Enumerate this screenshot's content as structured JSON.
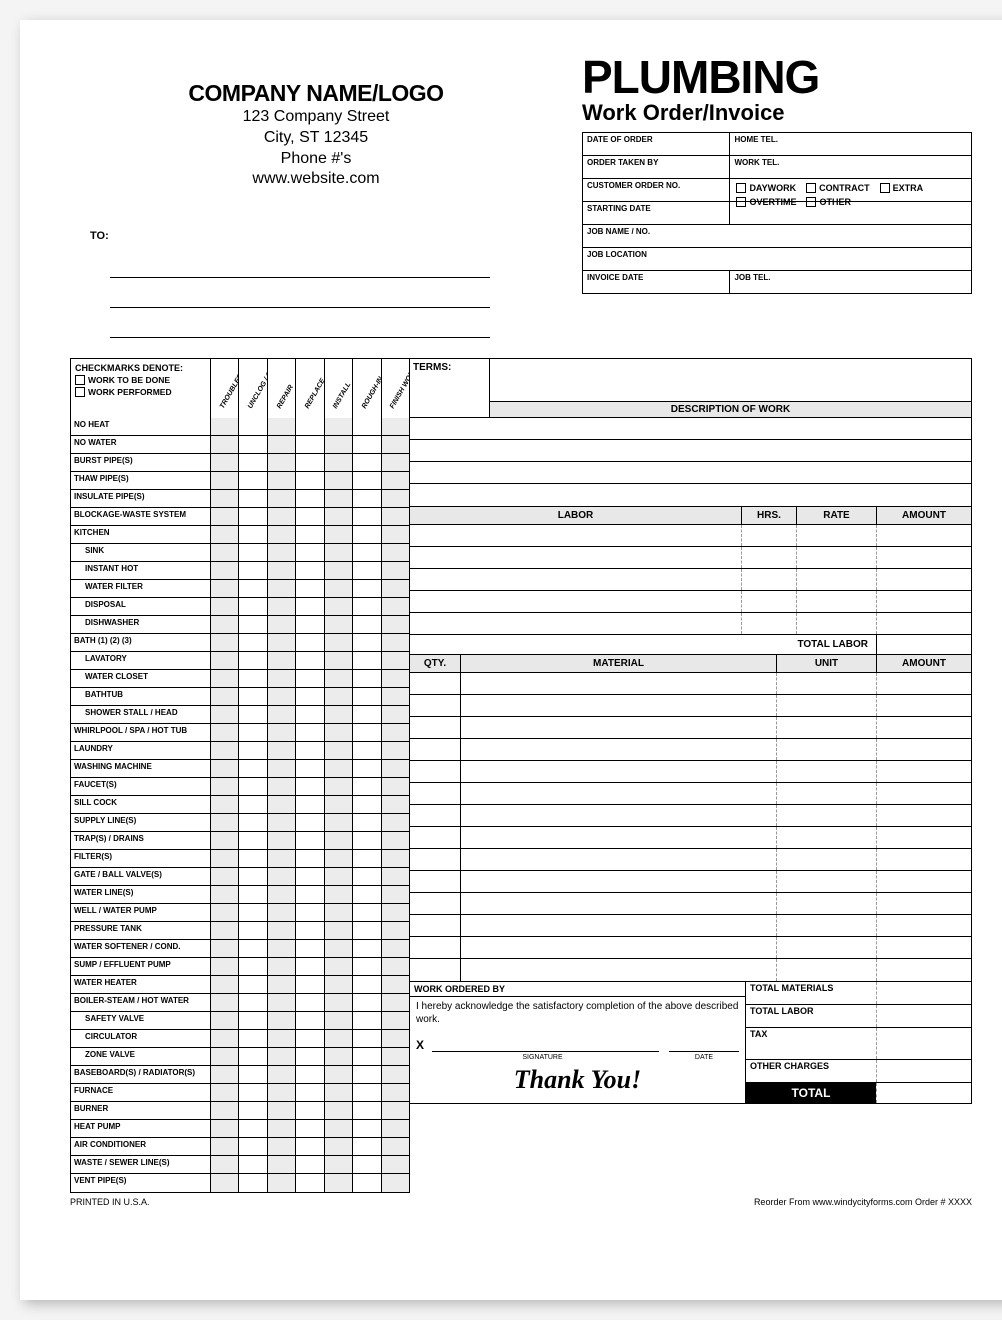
{
  "company": {
    "name": "COMPANY NAME/LOGO",
    "street": "123 Company Street",
    "city": "City, ST 12345",
    "phone": "Phone #'s",
    "web": "www.website.com"
  },
  "heading": {
    "title1": "PLUMBING",
    "title2": "Work Order/Invoice"
  },
  "info": {
    "date_of_order": "DATE OF ORDER",
    "home_tel": "HOME TEL.",
    "order_taken_by": "ORDER TAKEN BY",
    "work_tel": "WORK TEL.",
    "customer_order_no": "CUSTOMER ORDER NO.",
    "starting_date": "STARTING DATE",
    "job_name": "JOB NAME / NO.",
    "job_location": "JOB LOCATION",
    "invoice_date": "INVOICE DATE",
    "job_tel": "JOB TEL."
  },
  "options": {
    "daywork": "DAYWORK",
    "contract": "CONTRACT",
    "extra": "EXTRA",
    "overtime": "OVERTIME",
    "other": "OTHER"
  },
  "to_label": "TO:",
  "checkhead": {
    "title": "CHECKMARKS DENOTE:",
    "tbd": "WORK TO BE DONE",
    "wp": "WORK PERFORMED",
    "cols": [
      "TROUBLESHOOT / INSPECT",
      "UNCLOG / CLEAN",
      "REPAIR",
      "REPLACE",
      "INSTALL",
      "ROUGH-IN",
      "FINISH WORK"
    ]
  },
  "items": [
    {
      "l": "NO HEAT"
    },
    {
      "l": "NO WATER"
    },
    {
      "l": "BURST PIPE(S)"
    },
    {
      "l": "THAW PIPE(S)"
    },
    {
      "l": "INSULATE PIPE(S)"
    },
    {
      "l": "BLOCKAGE-WASTE SYSTEM"
    },
    {
      "l": "KITCHEN"
    },
    {
      "l": "SINK",
      "i": 1
    },
    {
      "l": "INSTANT HOT",
      "i": 1
    },
    {
      "l": "WATER FILTER",
      "i": 1
    },
    {
      "l": "DISPOSAL",
      "i": 1
    },
    {
      "l": "DISHWASHER",
      "i": 1
    },
    {
      "l": "BATH (1)  (2)  (3)"
    },
    {
      "l": "LAVATORY",
      "i": 1
    },
    {
      "l": "WATER CLOSET",
      "i": 1
    },
    {
      "l": "BATHTUB",
      "i": 1
    },
    {
      "l": "SHOWER STALL / HEAD",
      "i": 1
    },
    {
      "l": "WHIRLPOOL / SPA / HOT TUB"
    },
    {
      "l": "LAUNDRY"
    },
    {
      "l": "WASHING MACHINE"
    },
    {
      "l": "FAUCET(S)"
    },
    {
      "l": "SILL COCK"
    },
    {
      "l": "SUPPLY LINE(S)"
    },
    {
      "l": "TRAP(S) / DRAINS"
    },
    {
      "l": "FILTER(S)"
    },
    {
      "l": "GATE / BALL VALVE(S)"
    },
    {
      "l": "WATER LINE(S)"
    },
    {
      "l": "WELL / WATER PUMP"
    },
    {
      "l": "PRESSURE TANK"
    },
    {
      "l": "WATER SOFTENER / COND."
    },
    {
      "l": "SUMP / EFFLUENT PUMP"
    },
    {
      "l": "WATER HEATER"
    },
    {
      "l": "BOILER-STEAM / HOT WATER"
    },
    {
      "l": "SAFETY VALVE",
      "i": 1
    },
    {
      "l": "CIRCULATOR",
      "i": 1
    },
    {
      "l": "ZONE VALVE",
      "i": 1
    },
    {
      "l": "BASEBOARD(S) / RADIATOR(S)"
    },
    {
      "l": "FURNACE"
    },
    {
      "l": "BURNER"
    },
    {
      "l": "HEAT PUMP"
    },
    {
      "l": "AIR CONDITIONER"
    },
    {
      "l": "WASTE / SEWER LINE(S)"
    },
    {
      "l": "VENT PIPE(S)"
    }
  ],
  "terms_label": "TERMS:",
  "desc_work": "DESCRIPTION OF WORK",
  "labor": {
    "title": "LABOR",
    "hrs": "HRS.",
    "rate": "RATE",
    "amount": "AMOUNT",
    "total": "TOTAL LABOR"
  },
  "material": {
    "qty": "QTY.",
    "title": "MATERIAL",
    "unit": "UNIT",
    "amount": "AMOUNT"
  },
  "work_ordered_by": "WORK ORDERED BY",
  "ack": "I hereby acknowledge the satisfactory completion of the above described work.",
  "sig": {
    "x": "X",
    "signature": "SIGNATURE",
    "date": "DATE"
  },
  "thank_you": "Thank You!",
  "totals": {
    "materials": "TOTAL MATERIALS",
    "labor": "TOTAL LABOR",
    "tax": "TAX",
    "other": "OTHER CHARGES",
    "total": "TOTAL"
  },
  "footer": {
    "left": "PRINTED IN U.S.A.",
    "right": "Reorder From  www.windycityforms.com  Order # XXXX"
  }
}
